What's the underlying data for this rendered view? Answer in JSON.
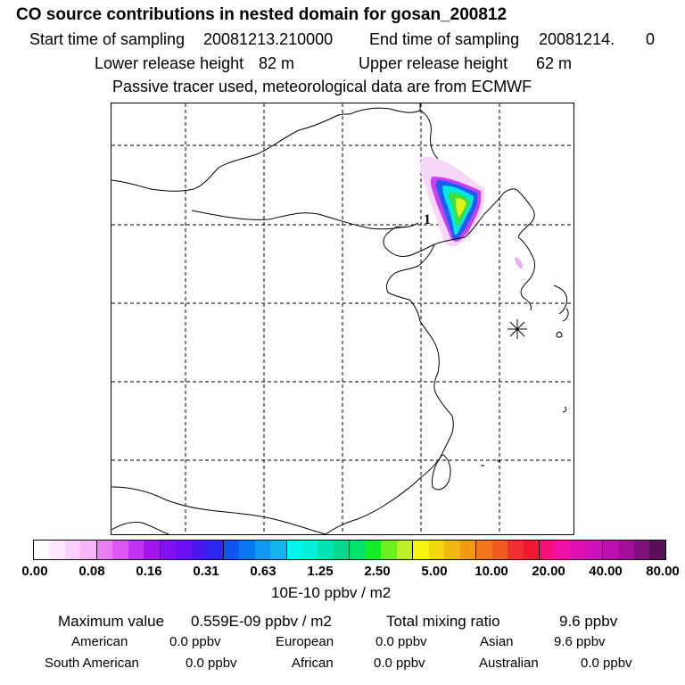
{
  "header": {
    "title": "CO  source contributions in nested domain for gosan_200812",
    "start_label": "Start time of sampling",
    "start_value": "20081213.210000",
    "end_label": "End time of sampling",
    "end_value": "20081214.",
    "end_suffix": "0",
    "lower_label": "Lower release height",
    "lower_value": "82 m",
    "upper_label": "Upper release height",
    "upper_value": "62 m",
    "tracer_note": "Passive tracer used, meteorological data are from ECMWF"
  },
  "map": {
    "contour_label": "1",
    "station_marker": "gosan-station-asterisk"
  },
  "colorbar": {
    "ticks": [
      "0.00",
      "0.08",
      "0.16",
      "0.31",
      "0.63",
      "1.25",
      "2.50",
      "5.00",
      "10.00",
      "20.00",
      "40.00",
      "80.00"
    ],
    "unit": "10E-10 ppbv / m2",
    "colors": [
      "#ffffff",
      "#fde8fd",
      "#fbd0fb",
      "#f7b5f7",
      "#ee7cf5",
      "#dd55f5",
      "#c433f2",
      "#a314f0",
      "#8210ef",
      "#6b10f2",
      "#4a18ef",
      "#3025f2",
      "#1055f0",
      "#0a78f0",
      "#1099f0",
      "#12b5ee",
      "#00f5ee",
      "#06f0d8",
      "#00e3b2",
      "#08d88d",
      "#00e36c",
      "#14ee28",
      "#6df020",
      "#bff026",
      "#f8f610",
      "#f2d80c",
      "#f2b812",
      "#f29a10",
      "#f2781e",
      "#f25a20",
      "#ef3030",
      "#f21832",
      "#f5107a",
      "#f010a8",
      "#e010b5",
      "#cf10b8",
      "#bc10b0",
      "#a0109c",
      "#80107c",
      "#5a1058"
    ]
  },
  "stats": {
    "max_label": "Maximum value",
    "max_value": "0.559E-09 ppbv / m2",
    "total_label": "Total mixing ratio",
    "total_value": "9.6 ppbv"
  },
  "regions": [
    {
      "name": "American",
      "value": "0.0 ppbv"
    },
    {
      "name": "European",
      "value": "0.0 ppbv"
    },
    {
      "name": "Asian",
      "value": "9.6 ppbv"
    },
    {
      "name": "South American",
      "value": "0.0 ppbv"
    },
    {
      "name": "African",
      "value": "0.0 ppbv"
    },
    {
      "name": "Australian",
      "value": "0.0 ppbv"
    }
  ]
}
